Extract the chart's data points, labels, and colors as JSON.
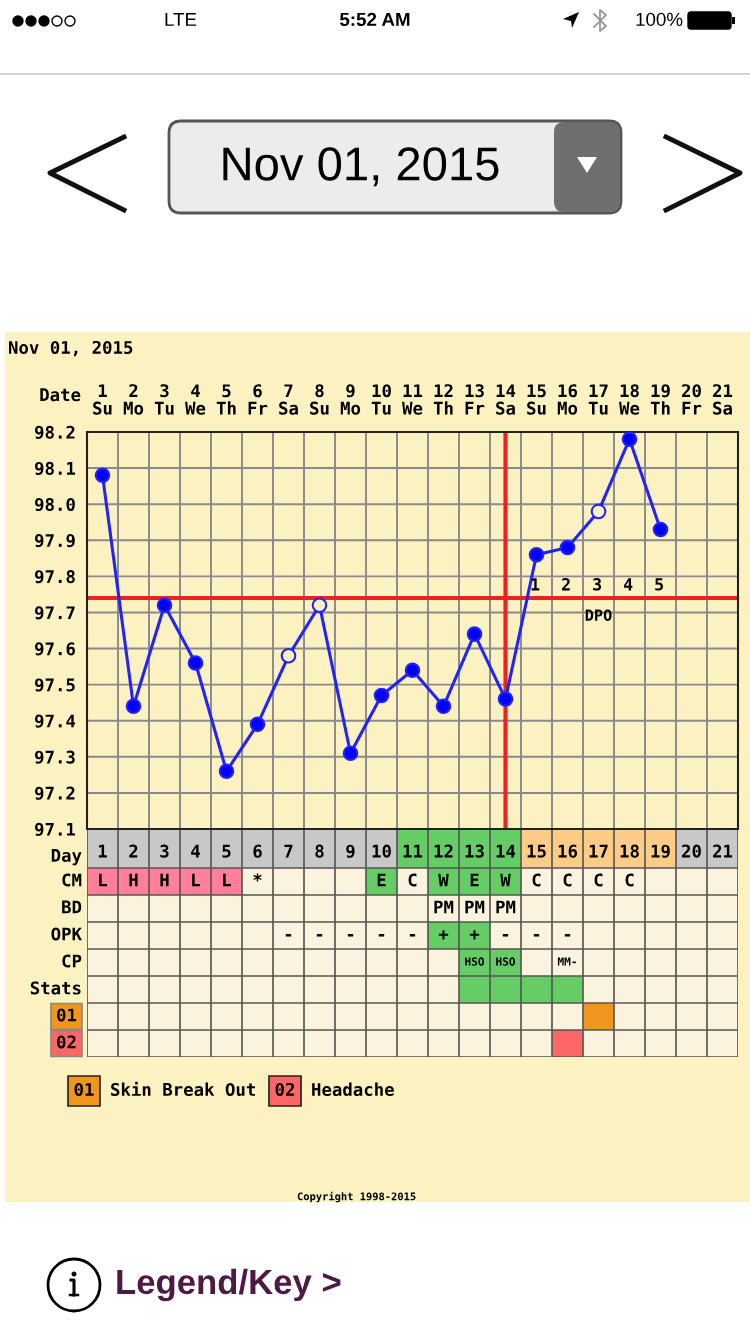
{
  "chart_data": [
    {
      "type": "other",
      "title": "Nov 01, 2015",
      "annotations": [
        "LTE",
        "5:52 AM",
        "100%"
      ]
    },
    {
      "type": "line",
      "title": "Nov 01, 2015",
      "xlabel": "Date",
      "x2label": "Day",
      "x": [
        1,
        2,
        3,
        4,
        5,
        6,
        7,
        8,
        9,
        10,
        11,
        12,
        13,
        14,
        15,
        16,
        17,
        18,
        19
      ],
      "xlim": [
        0.5,
        21.5
      ],
      "xticks": [
        {
          "value": 1,
          "label": "1\nSu"
        },
        {
          "value": 2,
          "label": "2\nMo"
        },
        {
          "value": 3,
          "label": "3\nTu"
        },
        {
          "value": 4,
          "label": "4\nWe"
        },
        {
          "value": 5,
          "label": "5\nTh"
        },
        {
          "value": 6,
          "label": "6\nFr"
        },
        {
          "value": 7,
          "label": "7\nSa"
        },
        {
          "value": 8,
          "label": "8\nSu"
        },
        {
          "value": 9,
          "label": "9\nMo"
        },
        {
          "value": 10,
          "label": "10\nTu"
        },
        {
          "value": 11,
          "label": "11\nWe"
        },
        {
          "value": 12,
          "label": "12\nTh"
        },
        {
          "value": 13,
          "label": "13\nFr"
        },
        {
          "value": 14,
          "label": "14\nSa"
        },
        {
          "value": 15,
          "label": "15\nSu"
        },
        {
          "value": 16,
          "label": "16\nMo"
        },
        {
          "value": 17,
          "label": "17\nTu"
        },
        {
          "value": 18,
          "label": "18\nWe"
        },
        {
          "value": 19,
          "label": "19\nTh"
        },
        {
          "value": 20,
          "label": "20\nFr"
        },
        {
          "value": 21,
          "label": "21\nSa"
        }
      ],
      "x2lim": [
        0.5,
        21.5
      ],
      "x2ticks": [
        1,
        2,
        3,
        4,
        5,
        6,
        7,
        8,
        9,
        10,
        11,
        12,
        13,
        14,
        15,
        16,
        17,
        18,
        19,
        20,
        21
      ],
      "ylim": [
        97.1,
        98.2
      ],
      "yticks": [
        97.1,
        97.2,
        97.3,
        97.4,
        97.5,
        97.6,
        97.7,
        97.8,
        97.9,
        {
          "value": 98.0,
          "label": "98.0"
        },
        98.1,
        98.2
      ],
      "series": [
        {
          "color": "#2222ff",
          "values": [
            98.08,
            97.44,
            97.72,
            97.56,
            97.26,
            97.39,
            97.58,
            97.72,
            97.31,
            97.47,
            97.54,
            97.44,
            97.64,
            97.46,
            97.86,
            97.88,
            97.98,
            98.18,
            97.93
          ],
          "colors": [
            "#0000ff",
            "#0000ff",
            "#0000ff",
            "#0000ff",
            "#0000ff",
            "#0000ff",
            "#fcf2c1",
            "#fcf2c1",
            "#0000ff",
            "#0000ff",
            "#0000ff",
            "#0000ff",
            "#0000ff",
            "#0000ff",
            "#0000ff",
            "#0000ff",
            "#fcf2c1",
            "#0000ff",
            "#0000ff"
          ]
        }
      ],
      "marker": "circle",
      "line_style": "solid",
      "grid": true,
      "ref_lines": [
        {
          "axis": "y",
          "value": 97.74,
          "color": "#ee2020"
        },
        {
          "axis": "x",
          "value": 14,
          "color": "#ee2020"
        }
      ],
      "annotations": [
        {
          "text": "1",
          "x": 15,
          "y": 97.74
        },
        {
          "text": "2",
          "x": 16,
          "y": 97.74
        },
        {
          "text": "3",
          "x": 17,
          "y": 97.74
        },
        {
          "text": "4",
          "x": 18,
          "y": 97.74
        },
        {
          "text": "5",
          "x": 19,
          "y": 97.74
        },
        "DPO"
      ]
    },
    {
      "type": "other",
      "y_categories": [
        null,
        "CM",
        "BD",
        "OPK",
        "CP",
        "Stats",
        "01",
        "02"
      ],
      "cell_labels": [
        [
          null,
          null,
          null,
          null,
          null,
          null,
          null,
          null,
          null,
          null,
          null,
          null,
          null,
          null,
          null,
          null,
          null,
          null,
          null,
          null,
          null
        ],
        [
          "L",
          "H",
          "H",
          "L",
          "L",
          "*",
          null,
          null,
          null,
          "E",
          "C",
          "W",
          "E",
          "W",
          "C",
          "C",
          "C",
          "C",
          null,
          null,
          null
        ],
        [
          null,
          null,
          null,
          null,
          null,
          null,
          null,
          null,
          null,
          null,
          null,
          "PM",
          "PM",
          "PM",
          null,
          null,
          null,
          null,
          null,
          null,
          null
        ],
        [
          null,
          null,
          null,
          null,
          null,
          null,
          "-",
          "-",
          "-",
          "-",
          "-",
          "+",
          "+",
          "-",
          "-",
          "-",
          null,
          null,
          null,
          null,
          null
        ],
        [
          null,
          null,
          null,
          null,
          null,
          null,
          null,
          null,
          null,
          null,
          null,
          null,
          "HSO",
          "HSO",
          null,
          "MM-",
          null,
          null,
          null,
          null,
          null
        ],
        [
          null,
          null,
          null,
          null,
          null,
          null,
          null,
          null,
          null,
          null,
          null,
          null,
          null,
          null,
          null,
          null,
          null,
          null,
          null,
          null,
          null
        ],
        [
          null,
          null,
          null,
          null,
          null,
          null,
          null,
          null,
          null,
          null,
          null,
          null,
          null,
          null,
          null,
          null,
          null,
          null,
          null,
          null,
          null
        ],
        [
          null,
          null,
          null,
          null,
          null,
          null,
          null,
          null,
          null,
          null,
          null,
          null,
          null,
          null,
          null,
          null,
          null,
          null,
          null,
          null,
          null
        ]
      ],
      "colors": [
        [
          "#c8c8c8",
          "#c8c8c8",
          "#c8c8c8",
          "#c8c8c8",
          "#c8c8c8",
          "#c8c8c8",
          "#c8c8c8",
          "#c8c8c8",
          "#c8c8c8",
          "#c8c8c8",
          "#66cc66",
          "#66cc66",
          "#66cc66",
          "#66cc66",
          "#ffcc88",
          "#ffcc88",
          "#ffcc88",
          "#ffcc88",
          "#ffcc88",
          "#c8c8c8",
          "#c8c8c8"
        ],
        [
          "#ff8098",
          "#ff8098",
          "#ff8098",
          "#ff8098",
          "#ff8098",
          null,
          null,
          null,
          null,
          "#66cc66",
          null,
          "#66cc66",
          "#66cc66",
          "#66cc66",
          null,
          null,
          null,
          null,
          null,
          null,
          null
        ],
        [
          null,
          null,
          null,
          null,
          null,
          null,
          null,
          null,
          null,
          null,
          null,
          null,
          null,
          null,
          null,
          null,
          null,
          null,
          null,
          null,
          null
        ],
        [
          null,
          null,
          null,
          null,
          null,
          null,
          null,
          null,
          null,
          null,
          null,
          "#66cc66",
          "#66cc66",
          null,
          null,
          null,
          null,
          null,
          null,
          null,
          null
        ],
        [
          null,
          null,
          null,
          null,
          null,
          null,
          null,
          null,
          null,
          null,
          null,
          null,
          "#66cc66",
          "#66cc66",
          null,
          null,
          null,
          null,
          null,
          null,
          null
        ],
        [
          null,
          null,
          null,
          null,
          null,
          null,
          null,
          null,
          null,
          null,
          null,
          null,
          "#66cc66",
          "#66cc66",
          "#66cc66",
          "#66cc66",
          null,
          null,
          null,
          null,
          null
        ],
        [
          null,
          null,
          null,
          null,
          null,
          null,
          null,
          null,
          null,
          null,
          null,
          null,
          null,
          null,
          null,
          null,
          "#f0961e",
          null,
          null,
          null,
          null
        ],
        [
          null,
          null,
          null,
          null,
          null,
          null,
          null,
          null,
          null,
          null,
          null,
          null,
          null,
          null,
          null,
          "#ff6666",
          null,
          null,
          null,
          null,
          null
        ]
      ],
      "series": [
        {
          "name": "Skin Break Out",
          "color": "#f0961e"
        },
        {
          "name": "Headache",
          "color": "#ff6666"
        }
      ],
      "legend": "bottom left",
      "annotations": [
        "Copyright 1998-2015",
        "Legend/Key >"
      ]
    }
  ]
}
